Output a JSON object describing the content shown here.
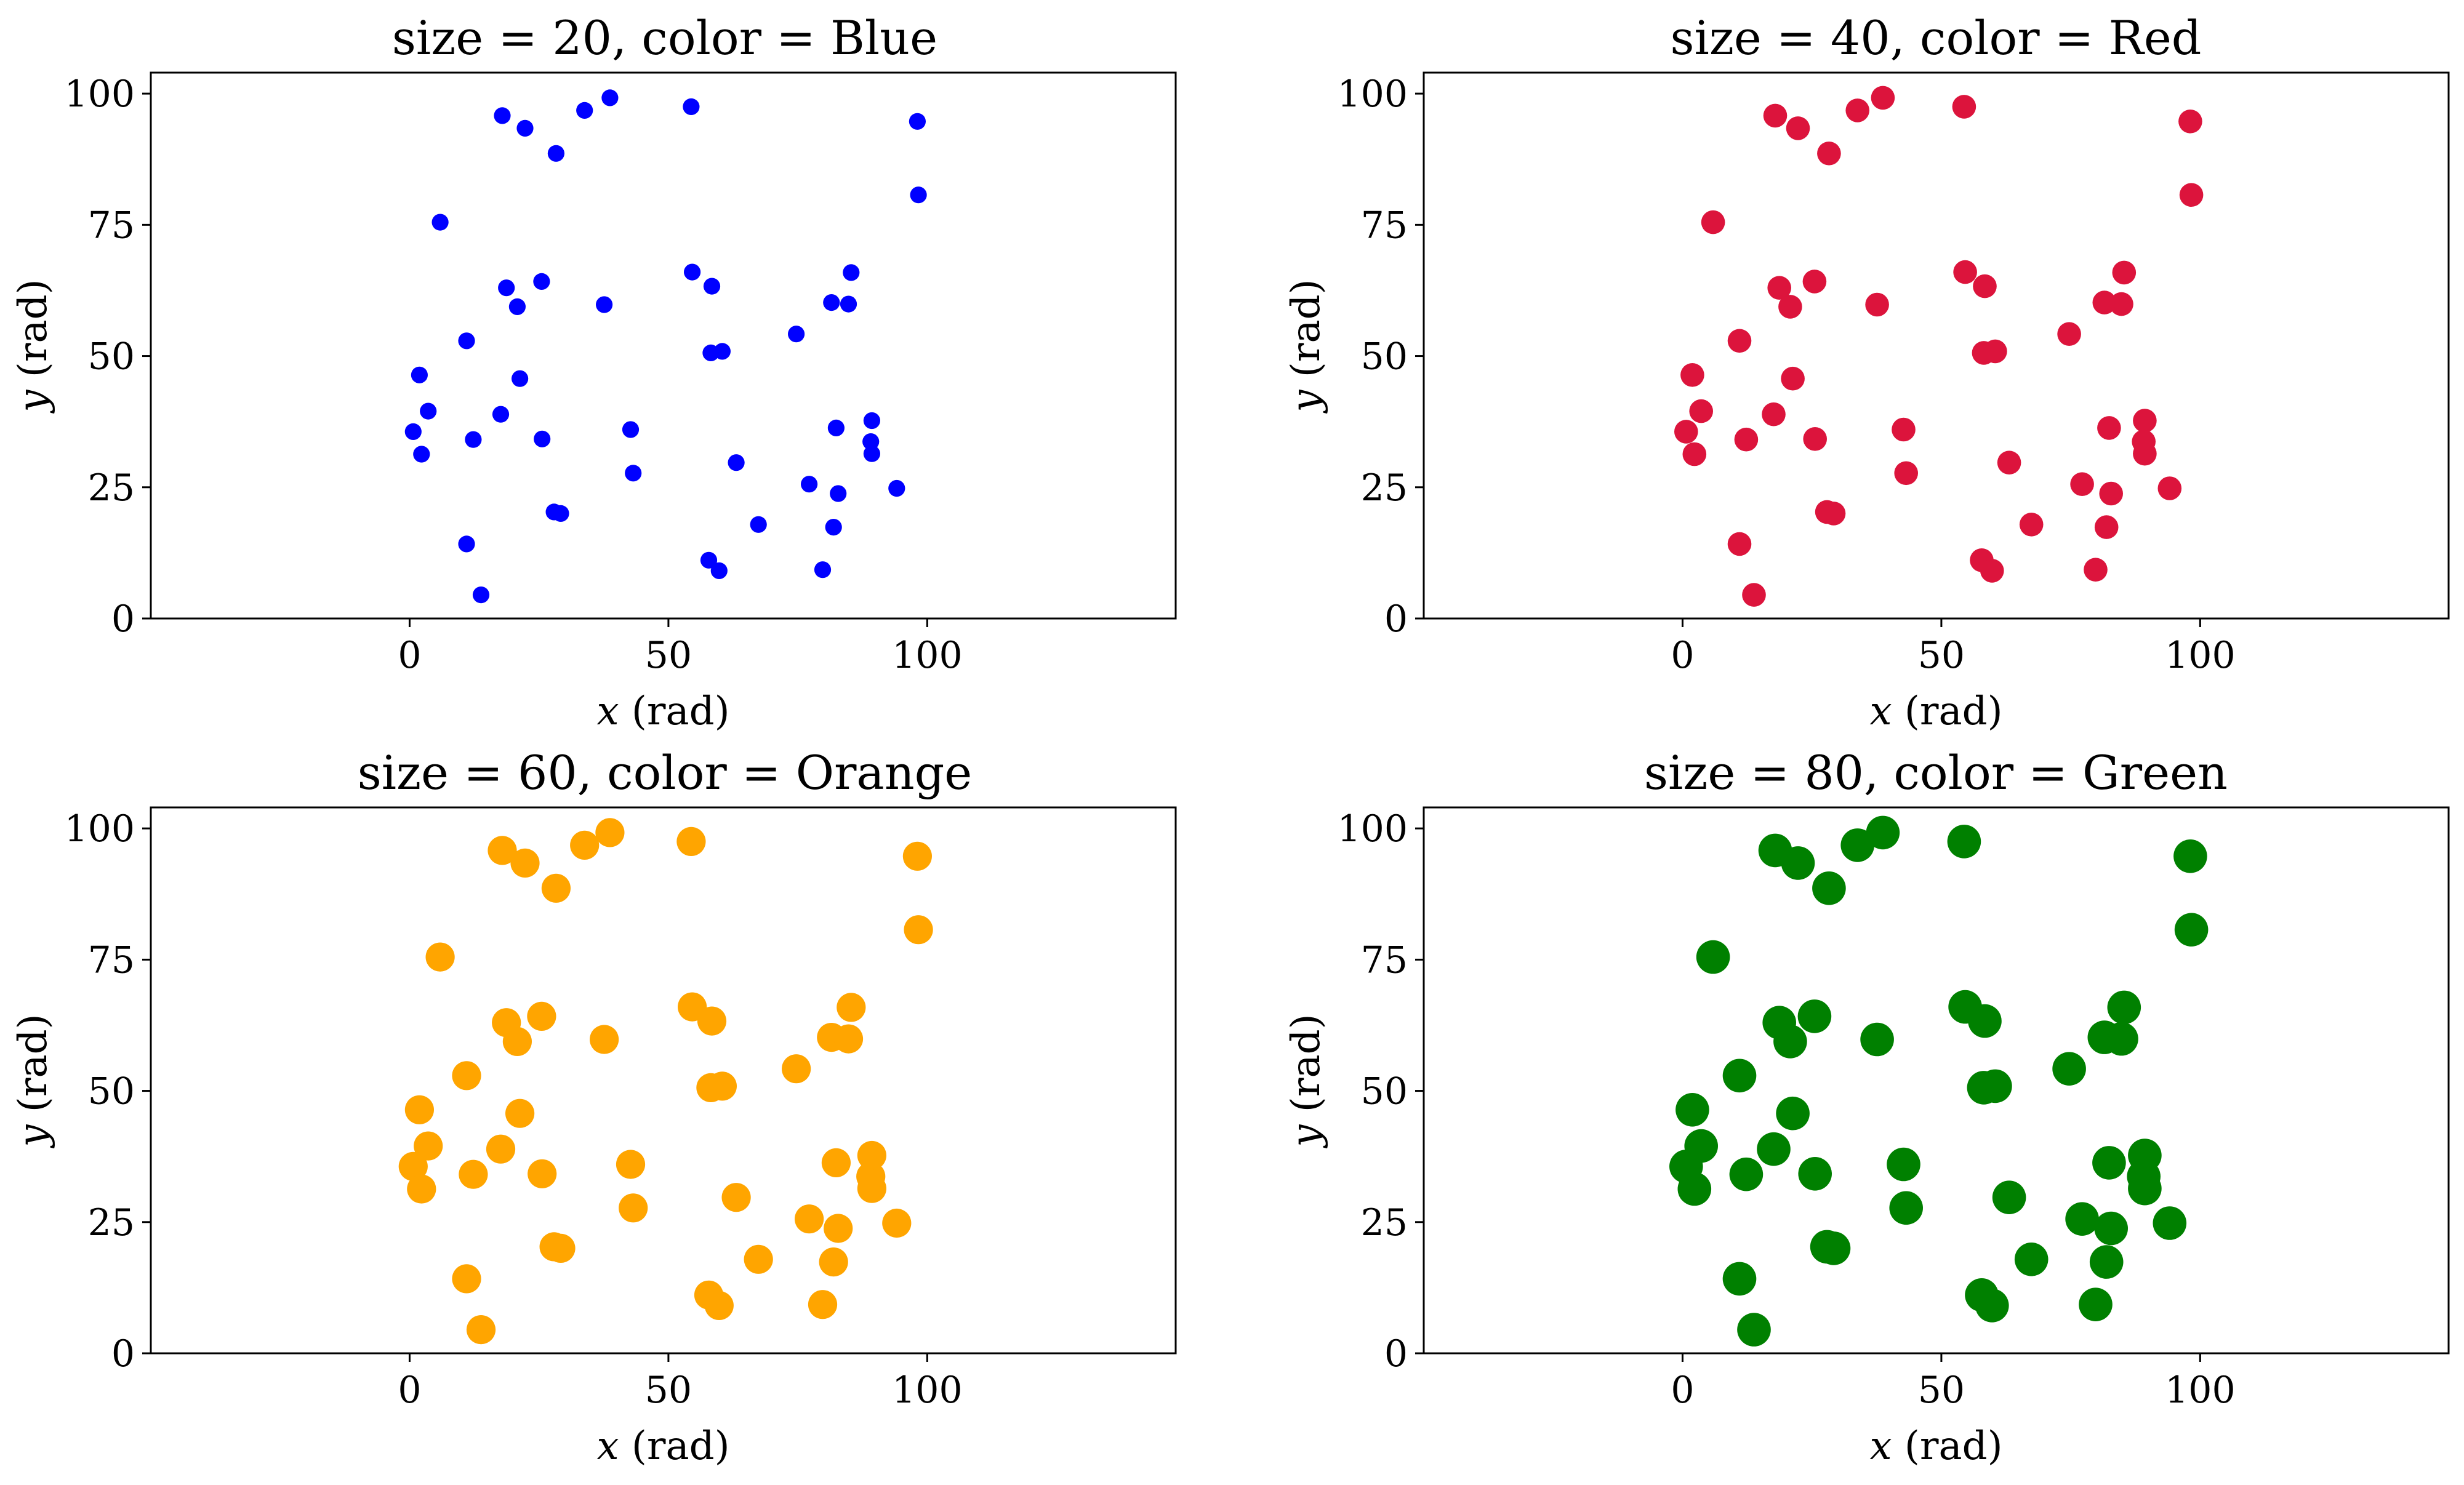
{
  "figure": {
    "background": "#ffffff"
  },
  "chart_data": [
    {
      "type": "scatter",
      "title": "size = 20, color = Blue",
      "xlabel_var": "x",
      "xlabel_unit": "(rad)",
      "ylabel_var": "y",
      "ylabel_unit": "(rad)",
      "xlim": [
        -50,
        148
      ],
      "ylim": [
        0,
        104
      ],
      "xticks": [
        0,
        50,
        100
      ],
      "yticks": [
        0,
        25,
        50,
        75,
        100
      ],
      "marker_size": 20,
      "color": "#0000ff",
      "grid": false,
      "x": [
        0.7,
        1.9,
        2.3,
        3.6,
        5.9,
        11.0,
        11.0,
        12.3,
        13.8,
        17.6,
        17.9,
        18.7,
        20.8,
        21.3,
        22.3,
        25.5,
        25.6,
        27.9,
        28.3,
        29.2,
        33.8,
        37.6,
        38.7,
        42.7,
        43.2,
        54.4,
        54.6,
        57.8,
        58.2,
        58.4,
        59.8,
        60.4,
        63.1,
        67.4,
        74.7,
        77.2,
        79.8,
        81.5,
        81.9,
        82.4,
        82.8,
        84.8,
        85.3,
        89.1,
        89.3,
        89.3,
        94.1,
        98.1,
        98.3
      ],
      "y": [
        35.6,
        46.4,
        31.3,
        39.5,
        75.5,
        14.2,
        52.9,
        34.1,
        4.5,
        38.9,
        95.8,
        63.0,
        59.4,
        45.7,
        93.4,
        64.2,
        34.2,
        20.3,
        88.6,
        20.0,
        96.8,
        59.8,
        99.2,
        36.0,
        27.7,
        97.5,
        66.0,
        11.1,
        50.6,
        63.3,
        9.1,
        50.9,
        29.7,
        17.9,
        54.2,
        25.6,
        9.3,
        60.2,
        17.4,
        36.3,
        23.8,
        59.9,
        65.9,
        33.7,
        37.7,
        31.4,
        24.8,
        94.7,
        80.7
      ]
    },
    {
      "type": "scatter",
      "title": "size = 40, color = Red",
      "xlabel_var": "x",
      "xlabel_unit": "(rad)",
      "ylabel_var": "y",
      "ylabel_unit": "(rad)",
      "xlim": [
        -50,
        148
      ],
      "ylim": [
        0,
        104
      ],
      "xticks": [
        0,
        50,
        100
      ],
      "yticks": [
        0,
        25,
        50,
        75,
        100
      ],
      "marker_size": 40,
      "color": "#dc143c",
      "grid": false,
      "x": [
        0.7,
        1.9,
        2.3,
        3.6,
        5.9,
        11.0,
        11.0,
        12.3,
        13.8,
        17.6,
        17.9,
        18.7,
        20.8,
        21.3,
        22.3,
        25.5,
        25.6,
        27.9,
        28.3,
        29.2,
        33.8,
        37.6,
        38.7,
        42.7,
        43.2,
        54.4,
        54.6,
        57.8,
        58.2,
        58.4,
        59.8,
        60.4,
        63.1,
        67.4,
        74.7,
        77.2,
        79.8,
        81.5,
        81.9,
        82.4,
        82.8,
        84.8,
        85.3,
        89.1,
        89.3,
        89.3,
        94.1,
        98.1,
        98.3
      ],
      "y": [
        35.6,
        46.4,
        31.3,
        39.5,
        75.5,
        14.2,
        52.9,
        34.1,
        4.5,
        38.9,
        95.8,
        63.0,
        59.4,
        45.7,
        93.4,
        64.2,
        34.2,
        20.3,
        88.6,
        20.0,
        96.8,
        59.8,
        99.2,
        36.0,
        27.7,
        97.5,
        66.0,
        11.1,
        50.6,
        63.3,
        9.1,
        50.9,
        29.7,
        17.9,
        54.2,
        25.6,
        9.3,
        60.2,
        17.4,
        36.3,
        23.8,
        59.9,
        65.9,
        33.7,
        37.7,
        31.4,
        24.8,
        94.7,
        80.7
      ]
    },
    {
      "type": "scatter",
      "title": "size = 60, color = Orange",
      "xlabel_var": "x",
      "xlabel_unit": "(rad)",
      "ylabel_var": "y",
      "ylabel_unit": "(rad)",
      "xlim": [
        -50,
        148
      ],
      "ylim": [
        0,
        104
      ],
      "xticks": [
        0,
        50,
        100
      ],
      "yticks": [
        0,
        25,
        50,
        75,
        100
      ],
      "marker_size": 60,
      "color": "#ffa500",
      "grid": false,
      "x": [
        0.7,
        1.9,
        2.3,
        3.6,
        5.9,
        11.0,
        11.0,
        12.3,
        13.8,
        17.6,
        17.9,
        18.7,
        20.8,
        21.3,
        22.3,
        25.5,
        25.6,
        27.9,
        28.3,
        29.2,
        33.8,
        37.6,
        38.7,
        42.7,
        43.2,
        54.4,
        54.6,
        57.8,
        58.2,
        58.4,
        59.8,
        60.4,
        63.1,
        67.4,
        74.7,
        77.2,
        79.8,
        81.5,
        81.9,
        82.4,
        82.8,
        84.8,
        85.3,
        89.1,
        89.3,
        89.3,
        94.1,
        98.1,
        98.3
      ],
      "y": [
        35.6,
        46.4,
        31.3,
        39.5,
        75.5,
        14.2,
        52.9,
        34.1,
        4.5,
        38.9,
        95.8,
        63.0,
        59.4,
        45.7,
        93.4,
        64.2,
        34.2,
        20.3,
        88.6,
        20.0,
        96.8,
        59.8,
        99.2,
        36.0,
        27.7,
        97.5,
        66.0,
        11.1,
        50.6,
        63.3,
        9.1,
        50.9,
        29.7,
        17.9,
        54.2,
        25.6,
        9.3,
        60.2,
        17.4,
        36.3,
        23.8,
        59.9,
        65.9,
        33.7,
        37.7,
        31.4,
        24.8,
        94.7,
        80.7
      ]
    },
    {
      "type": "scatter",
      "title": "size = 80, color = Green",
      "xlabel_var": "x",
      "xlabel_unit": "(rad)",
      "ylabel_var": "y",
      "ylabel_unit": "(rad)",
      "xlim": [
        -50,
        148
      ],
      "ylim": [
        0,
        104
      ],
      "xticks": [
        0,
        50,
        100
      ],
      "yticks": [
        0,
        25,
        50,
        75,
        100
      ],
      "marker_size": 80,
      "color": "#008000",
      "grid": false,
      "x": [
        0.7,
        1.9,
        2.3,
        3.6,
        5.9,
        11.0,
        11.0,
        12.3,
        13.8,
        17.6,
        17.9,
        18.7,
        20.8,
        21.3,
        22.3,
        25.5,
        25.6,
        27.9,
        28.3,
        29.2,
        33.8,
        37.6,
        38.7,
        42.7,
        43.2,
        54.4,
        54.6,
        57.8,
        58.2,
        58.4,
        59.8,
        60.4,
        63.1,
        67.4,
        74.7,
        77.2,
        79.8,
        81.5,
        81.9,
        82.4,
        82.8,
        84.8,
        85.3,
        89.1,
        89.3,
        89.3,
        94.1,
        98.1,
        98.3
      ],
      "y": [
        35.6,
        46.4,
        31.3,
        39.5,
        75.5,
        14.2,
        52.9,
        34.1,
        4.5,
        38.9,
        95.8,
        63.0,
        59.4,
        45.7,
        93.4,
        64.2,
        34.2,
        20.3,
        88.6,
        20.0,
        96.8,
        59.8,
        99.2,
        36.0,
        27.7,
        97.5,
        66.0,
        11.1,
        50.6,
        63.3,
        9.1,
        50.9,
        29.7,
        17.9,
        54.2,
        25.6,
        9.3,
        60.2,
        17.4,
        36.3,
        23.8,
        59.9,
        65.9,
        33.7,
        37.7,
        31.4,
        24.8,
        94.7,
        80.7
      ]
    }
  ]
}
